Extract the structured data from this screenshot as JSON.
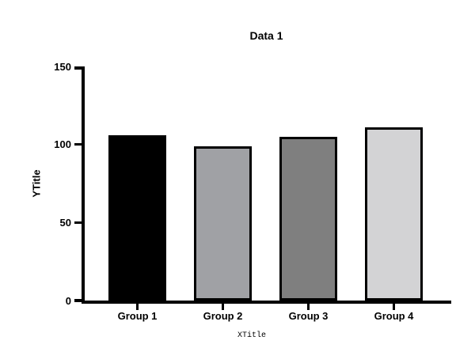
{
  "figure": {
    "title": "Data 1"
  },
  "chart_data": {
    "type": "bar",
    "title": "Data 1",
    "categories": [
      "Group 1",
      "Group 2",
      "Group 3",
      "Group 4"
    ],
    "values": [
      106,
      99,
      105,
      111
    ],
    "xlabel": "XTitle",
    "ylabel": "YTitle",
    "ylim": [
      0,
      150
    ],
    "yticks": [
      0,
      50,
      100,
      150
    ],
    "grid": false,
    "legend": "none",
    "bar_fill_colors": [
      "#000000",
      "#a0a1a5",
      "#7f7f7f",
      "#d3d3d5"
    ],
    "bar_border_color": "#000000",
    "axis_color": "#000000",
    "background_color": "#ffffff"
  }
}
